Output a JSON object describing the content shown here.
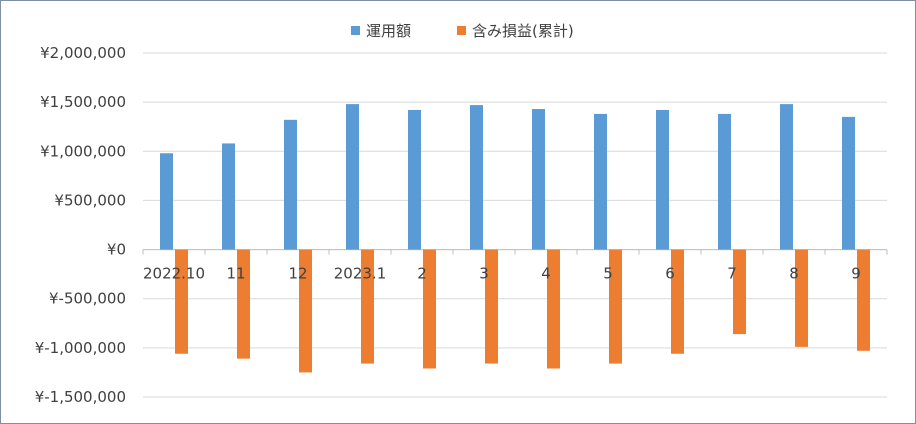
{
  "chart_data": {
    "type": "bar",
    "categories": [
      "2022.10",
      "11",
      "12",
      "2023.1",
      "2",
      "3",
      "4",
      "5",
      "6",
      "7",
      "8",
      "9"
    ],
    "series": [
      {
        "name": "運用額",
        "color": "#5b9bd5",
        "values": [
          980000,
          1080000,
          1320000,
          1480000,
          1420000,
          1470000,
          1430000,
          1380000,
          1420000,
          1380000,
          1480000,
          1350000
        ]
      },
      {
        "name": "含み損益(累計)",
        "color": "#ed7d31",
        "values": [
          -1060000,
          -1110000,
          -1250000,
          -1160000,
          -1210000,
          -1160000,
          -1210000,
          -1160000,
          -1060000,
          -860000,
          -990000,
          -1030000
        ]
      }
    ],
    "ylim": [
      -1500000,
      2000000
    ],
    "y_ticks": [
      2000000,
      1500000,
      1000000,
      500000,
      0,
      -500000,
      -1000000,
      -1500000
    ],
    "y_tick_labels": [
      "¥2,000,000",
      "¥1,500,000",
      "¥1,000,000",
      "¥500,000",
      "¥0",
      "¥-500,000",
      "¥-1,000,000",
      "¥-1,500,000"
    ],
    "negative_label_color": "#ff0000",
    "grid": true,
    "legend_position": "top"
  }
}
